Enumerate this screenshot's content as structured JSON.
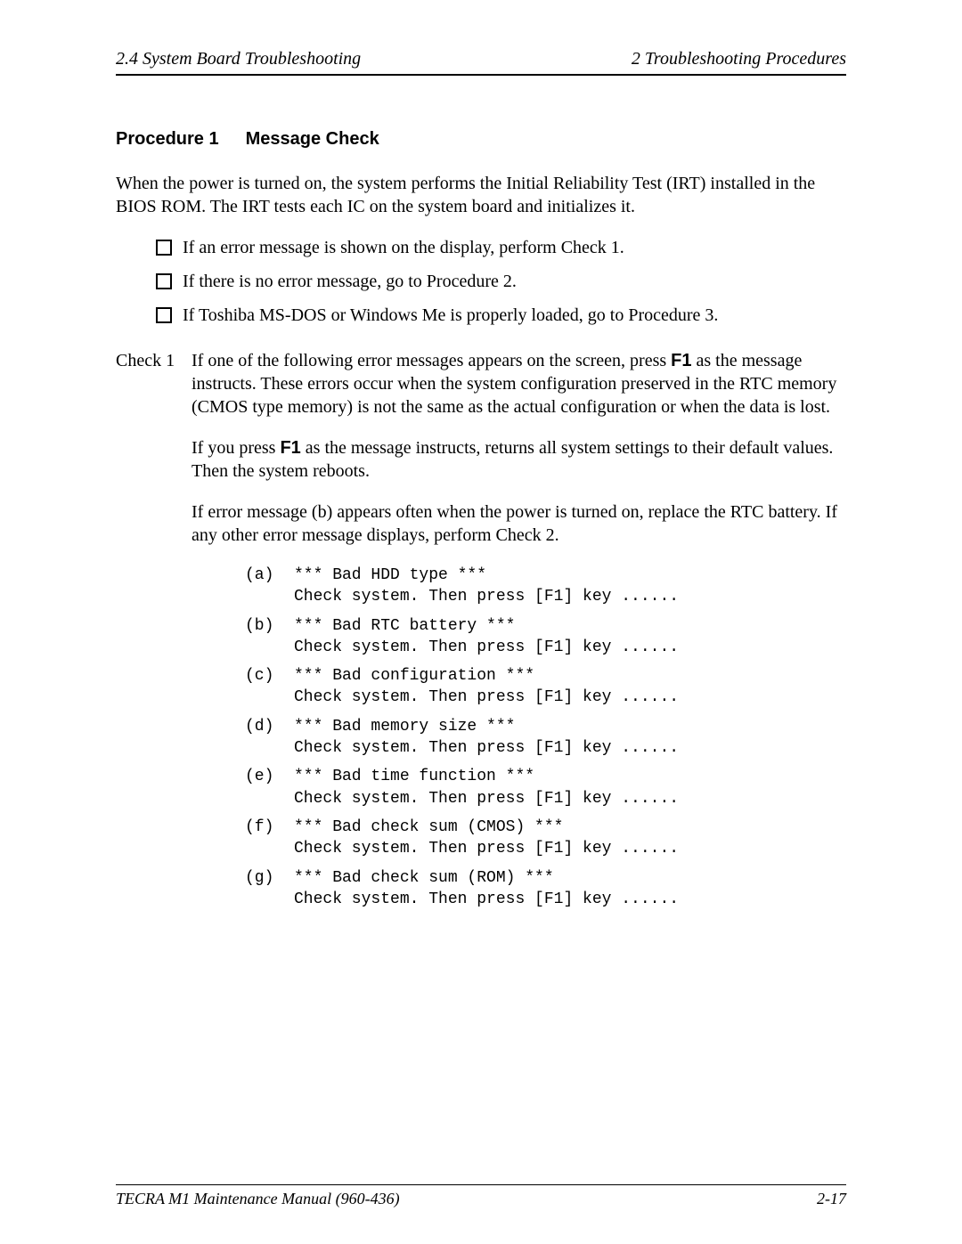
{
  "header": {
    "left": "2.4 System Board Troubleshooting",
    "right": "2  Troubleshooting Procedures"
  },
  "procedure": {
    "number": "Procedure 1",
    "title": "Message Check"
  },
  "intro": "When the power is turned on, the system performs the Initial Reliability Test (IRT) installed in the BIOS ROM. The IRT tests each IC on the system board and initializes it.",
  "bullets": [
    "If an error message is shown on the display, perform Check 1.",
    "If there is no error message, go to Procedure 2.",
    "If Toshiba MS-DOS or Windows Me is properly loaded, go to Procedure 3."
  ],
  "check1": {
    "label": "Check 1",
    "para1_pre": "If one of the following error messages appears on the screen, press ",
    "para1_key": "F1",
    "para1_post": " as the message instructs. These errors occur when the system configuration preserved in the RTC memory (CMOS type memory) is not the same as the actual configuration or when the data is lost.",
    "para2_pre": "If you press ",
    "para2_key": "F1",
    "para2_post": " as the message instructs, returns all system settings to their default values. Then the system reboots.",
    "para3": "If error message (b) appears often when the power is turned on, replace the RTC battery. If any other error message displays, perform Check 2."
  },
  "errors": [
    {
      "k": "(a)",
      "l1": "*** Bad HDD type ***",
      "l2": "Check system.  Then press [F1] key ......"
    },
    {
      "k": "(b)",
      "l1": "*** Bad RTC battery ***",
      "l2": "Check system.  Then press [F1] key ......"
    },
    {
      "k": "(c)",
      "l1": "*** Bad configuration ***",
      "l2": "Check system.  Then press [F1] key ......"
    },
    {
      "k": "(d)",
      "l1": "*** Bad memory size ***",
      "l2": "Check system.  Then press [F1] key ......"
    },
    {
      "k": "(e)",
      "l1": "*** Bad time function ***",
      "l2": "Check system.  Then press [F1] key ......"
    },
    {
      "k": "(f)",
      "l1": "*** Bad check sum (CMOS) ***",
      "l2": "Check system.  Then press [F1] key ......"
    },
    {
      "k": "(g)",
      "l1": "*** Bad check sum (ROM) ***",
      "l2": "Check system.  Then press [F1] key ......"
    }
  ],
  "footer": {
    "left": "TECRA M1 Maintenance Manual (960-436)",
    "right": "2-17"
  }
}
